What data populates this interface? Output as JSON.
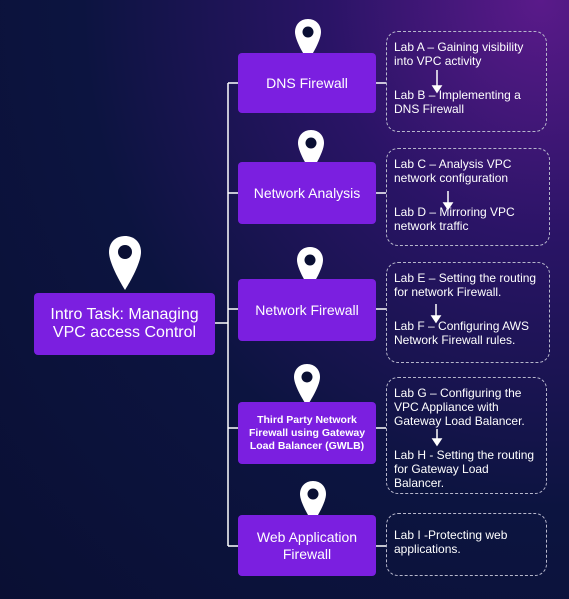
{
  "intro": {
    "label": "Intro Task: Managing VPC access Control"
  },
  "topics": [
    {
      "label": "DNS Firewall",
      "labs": [
        "Lab A – Gaining visibility into VPC activity",
        "Lab B – Implementing a DNS Firewall"
      ]
    },
    {
      "label": "Network Analysis",
      "labs": [
        "Lab C – Analysis VPC network configuration",
        "Lab D – Mirroring VPC network traffic"
      ]
    },
    {
      "label": "Network Firewall",
      "labs": [
        "Lab E – Setting the routing for network Firewall.",
        "Lab F – Configuring AWS Network Firewall rules."
      ]
    },
    {
      "label": "Third Party Network Firewall using Gateway Load Balancer (GWLB)",
      "labs": [
        "Lab G – Configuring the VPC Appliance with Gateway Load Balancer.",
        "Lab H - Setting the routing for Gateway Load Balancer."
      ]
    },
    {
      "label": "Web Application Firewall",
      "labs": [
        "Lab I -Protecting web applications."
      ]
    }
  ],
  "icons": {
    "pin": "location-pin-icon",
    "arrow": "arrow-down-icon"
  },
  "colors": {
    "box": "#7b1fe0",
    "connector": "#ffffff",
    "dashed_border": "#b7b7cc"
  }
}
